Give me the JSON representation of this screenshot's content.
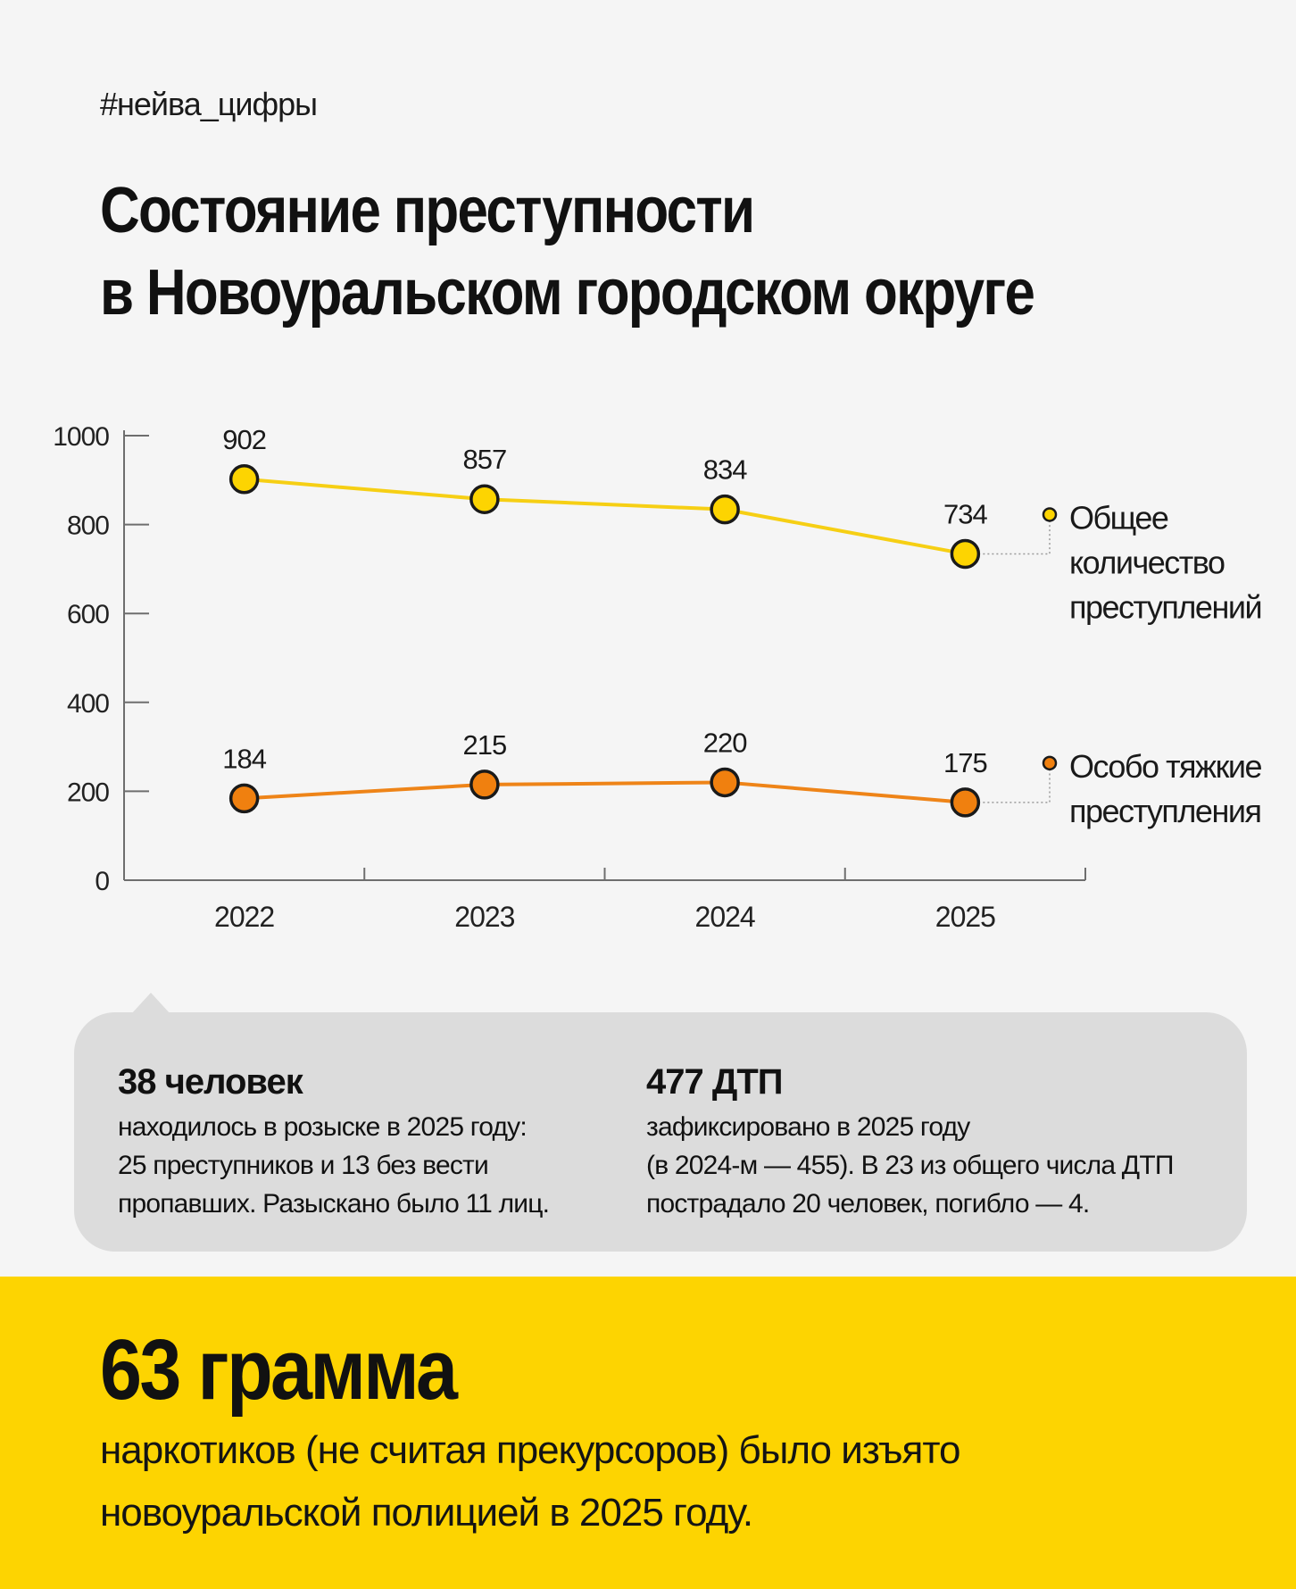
{
  "header": {
    "hashtag": "#нейва_цифры",
    "title_line1": "Состояние преступности",
    "title_line2": "в Новоуральском городском округе"
  },
  "chart_data": {
    "type": "line",
    "title": "Состояние преступности в Новоуральском городском округе",
    "categories": [
      "2022",
      "2023",
      "2024",
      "2025"
    ],
    "ylim": [
      0,
      1000
    ],
    "yticks": [
      "0",
      "200",
      "400",
      "600",
      "800",
      "1000"
    ],
    "grid": false,
    "series": [
      {
        "name": "Общее количество преступлений",
        "legend_lines": [
          "Общее",
          "количество",
          "преступлений"
        ],
        "values": [
          902,
          857,
          834,
          734
        ],
        "color": "#fdd401",
        "line_color": "#f6cf14"
      },
      {
        "name": "Особо тяжкие преступления",
        "legend_lines": [
          "Особо тяжкие",
          "преступления"
        ],
        "values": [
          184,
          215,
          220,
          175
        ],
        "color": "#f0800f",
        "line_color": "#ee8418"
      }
    ]
  },
  "facts": [
    {
      "headline": "38 человек",
      "lines": [
        "находилось в розыске в 2025 году:",
        "25 преступников и 13 без вести",
        "пропавших. Разыскано было 11 лиц."
      ]
    },
    {
      "headline": "477 ДТП",
      "lines": [
        "зафиксировано в 2025 году",
        "(в 2024-м — 455). В 23 из общего числа ДТП",
        "пострадало 20 человек, погибло — 4."
      ]
    }
  ],
  "highlight": {
    "number": "63 грамма",
    "line1": "наркотиков (не считая прекурсоров) было изъято",
    "line2": "новоуральской полицией в 2025 году."
  },
  "colors": {
    "background": "#f5f5f5",
    "bubble": "#dcdcdc",
    "accent_yellow": "#fdd401",
    "accent_orange": "#f0800f",
    "text": "#111111"
  }
}
